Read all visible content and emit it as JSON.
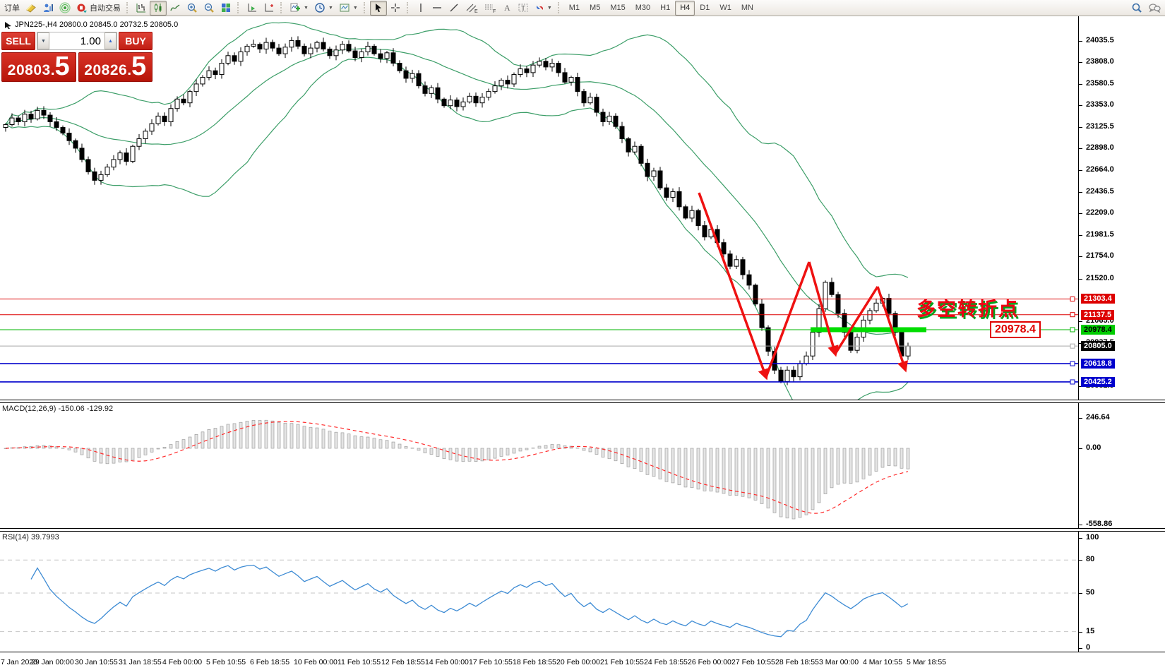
{
  "toolbar": {
    "new_order_label": "订单",
    "autotrade_label": "自动交易",
    "timeframes": [
      "M1",
      "M5",
      "M15",
      "M30",
      "H1",
      "H4",
      "D1",
      "W1",
      "MN"
    ],
    "active_timeframe": "H4"
  },
  "trade_panel": {
    "sell_label": "SELL",
    "buy_label": "BUY",
    "volume": "1.00",
    "sell_price_int": "20803",
    "sell_price_dec": "5",
    "buy_price_int": "20826",
    "buy_price_dec": "5"
  },
  "chart_header": {
    "title": "JPN225-,H4  20800.0 20845.0 20732.5 20805.0"
  },
  "main_chart": {
    "price_axis_ticks": [
      "24035.5",
      "23808.0",
      "23580.5",
      "23353.0",
      "23125.5",
      "22898.0",
      "22664.0",
      "22436.5",
      "22209.0",
      "21981.5",
      "21754.0",
      "21520.0",
      "21065.0",
      "20837.5",
      "20382.5"
    ],
    "lines": [
      {
        "price": 21303.4,
        "label": "21303.4",
        "color": "#dd0000",
        "label_bg": "#dd0000",
        "label_fg": "#ffffff",
        "width": 1
      },
      {
        "price": 21137.5,
        "label": "21137.5",
        "color": "#dd0000",
        "label_bg": "#dd0000",
        "label_fg": "#ffffff",
        "width": 1
      },
      {
        "price": 20978.4,
        "label": "20978.4",
        "color": "#00b400",
        "label_bg": "#00cc00",
        "label_fg": "#000000",
        "width": 1
      },
      {
        "price": 20805.0,
        "label": "20805.0",
        "color": "#a8a8a8",
        "label_bg": "#000000",
        "label_fg": "#ffffff",
        "width": 1
      },
      {
        "price": 20618.8,
        "label": "20618.8",
        "color": "#0000cc",
        "label_bg": "#0000cc",
        "label_fg": "#ffffff",
        "width": 1.6
      },
      {
        "price": 20425.2,
        "label": "20425.2",
        "color": "#0000cc",
        "label_bg": "#0000cc",
        "label_fg": "#ffffff",
        "width": 1.6
      }
    ],
    "annotation_text": "多空转折点",
    "annotation_price_label": "20978.4",
    "bollinger_color": "#3c9e68",
    "support_bar_color": "#00dd00",
    "trend_arrow_color": "#ee1111"
  },
  "macd": {
    "label": "MACD(12,26,9) -150.06 -129.92",
    "scale": [
      "246.64",
      "0.00",
      "-558.86"
    ],
    "histogram_fill": "#e4e4e4",
    "histogram_stroke": "#9e9e9e",
    "signal_color": "#ff2a2a"
  },
  "rsi": {
    "label": "RSI(14) 39.7993",
    "scale": [
      "100",
      "80",
      "50",
      "15",
      "0"
    ],
    "levels": [
      80,
      50,
      15
    ],
    "color": "#3d8bd4"
  },
  "time_axis": [
    "7 Jan 2020",
    "29 Jan 00:00",
    "30 Jan 10:55",
    "31 Jan 18:55",
    "4 Feb 00:00",
    "5 Feb 10:55",
    "6 Feb 18:55",
    "10 Feb 00:00",
    "11 Feb 10:55",
    "12 Feb 18:55",
    "14 Feb 00:00",
    "17 Feb 10:55",
    "18 Feb 18:55",
    "20 Feb 00:00",
    "21 Feb 10:55",
    "24 Feb 18:55",
    "26 Feb 00:00",
    "27 Feb 10:55",
    "28 Feb 18:55",
    "3 Mar 00:00",
    "4 Mar 10:55",
    "5 Mar 18:55"
  ],
  "chart_data": {
    "type": "candlestick",
    "symbol": "JPN225-",
    "timeframe": "H4",
    "last_ohlc": {
      "open": 20800.0,
      "high": 20845.0,
      "low": 20732.5,
      "close": 20805.0
    },
    "bid": 20803.5,
    "ask": 20826.5,
    "y_axis_range": [
      20382.5,
      24100
    ],
    "indicators": [
      "Bollinger Bands",
      "MACD(12,26,9)",
      "RSI(14)"
    ],
    "closes": [
      23150,
      23220,
      23180,
      23260,
      23210,
      23300,
      23250,
      23180,
      23120,
      23060,
      22980,
      22900,
      22780,
      22650,
      22560,
      22620,
      22700,
      22780,
      22850,
      22760,
      22920,
      23000,
      23080,
      23160,
      23240,
      23180,
      23320,
      23420,
      23380,
      23500,
      23580,
      23650,
      23720,
      23680,
      23800,
      23880,
      23820,
      23920,
      23980,
      24000,
      23950,
      24020,
      23960,
      23900,
      23970,
      24040,
      23980,
      23900,
      23960,
      24020,
      23950,
      23880,
      23940,
      24000,
      23930,
      23860,
      23920,
      23980,
      23900,
      23850,
      23910,
      23800,
      23720,
      23640,
      23690,
      23560,
      23480,
      23540,
      23420,
      23350,
      23410,
      23340,
      23390,
      23450,
      23380,
      23440,
      23500,
      23560,
      23620,
      23580,
      23680,
      23740,
      23700,
      23780,
      23820,
      23760,
      23800,
      23700,
      23600,
      23650,
      23500,
      23380,
      23440,
      23280,
      23180,
      23240,
      23130,
      23000,
      22860,
      22920,
      22740,
      22600,
      22660,
      22480,
      22380,
      22440,
      22280,
      22160,
      22240,
      22080,
      21960,
      22040,
      21900,
      21780,
      21650,
      21720,
      21560,
      21450,
      21250,
      21000,
      20750,
      20550,
      20430,
      20550,
      20480,
      20620,
      20700,
      20950,
      21200,
      21480,
      21350,
      21150,
      20950,
      20760,
      20900,
      21080,
      21180,
      21260,
      21310,
      21150,
      20950,
      20700,
      20805
    ]
  }
}
